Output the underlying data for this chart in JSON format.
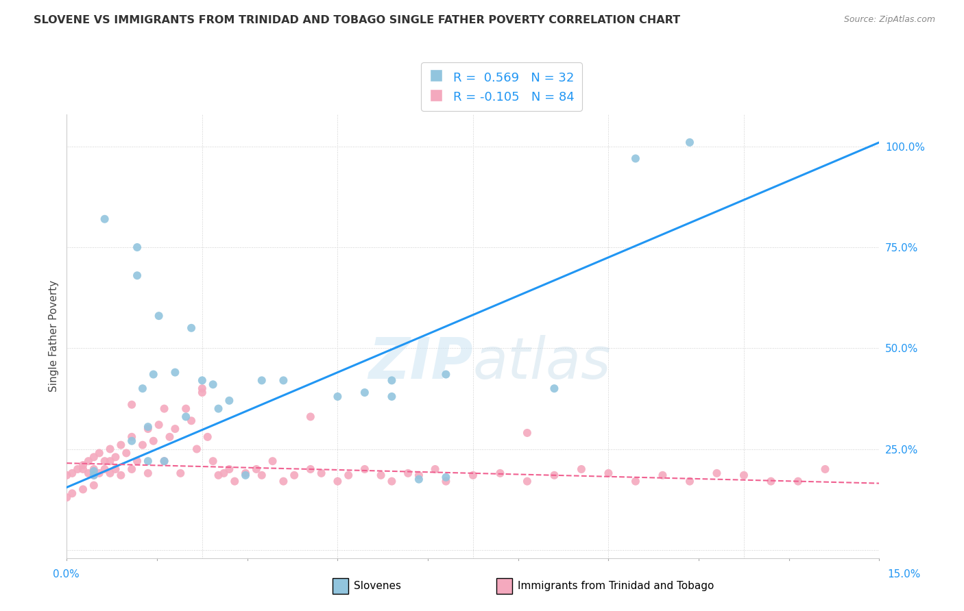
{
  "title": "SLOVENE VS IMMIGRANTS FROM TRINIDAD AND TOBAGO SINGLE FATHER POVERTY CORRELATION CHART",
  "source": "Source: ZipAtlas.com",
  "ylabel": "Single Father Poverty",
  "xlim": [
    0.0,
    0.15
  ],
  "ylim": [
    -0.02,
    1.08
  ],
  "blue_R": 0.569,
  "blue_N": 32,
  "pink_R": -0.105,
  "pink_N": 84,
  "blue_color": "#92c5de",
  "pink_color": "#f4a9be",
  "blue_line_color": "#2196F3",
  "pink_line_color": "#f06090",
  "legend_label_blue": "Slovenes",
  "legend_label_pink": "Immigrants from Trinidad and Tobago",
  "watermark_zip": "ZIP",
  "watermark_atlas": "atlas",
  "right_yticks": [
    0.0,
    0.25,
    0.5,
    0.75,
    1.0
  ],
  "right_yticklabels": [
    "",
    "25.0%",
    "50.0%",
    "75.0%",
    "100.0%"
  ],
  "blue_x": [
    0.005,
    0.005,
    0.007,
    0.012,
    0.013,
    0.013,
    0.014,
    0.015,
    0.015,
    0.016,
    0.017,
    0.018,
    0.02,
    0.022,
    0.023,
    0.025,
    0.027,
    0.028,
    0.03,
    0.033,
    0.036,
    0.04,
    0.05,
    0.055,
    0.06,
    0.065,
    0.07,
    0.09,
    0.105,
    0.115,
    0.06,
    0.07
  ],
  "blue_y": [
    0.185,
    0.195,
    0.82,
    0.27,
    0.75,
    0.68,
    0.4,
    0.22,
    0.305,
    0.435,
    0.58,
    0.22,
    0.44,
    0.33,
    0.55,
    0.42,
    0.41,
    0.35,
    0.37,
    0.185,
    0.42,
    0.42,
    0.38,
    0.39,
    0.38,
    0.175,
    0.435,
    0.4,
    0.97,
    1.01,
    0.42,
    0.18
  ],
  "pink_x": [
    0.0,
    0.001,
    0.002,
    0.003,
    0.003,
    0.004,
    0.004,
    0.005,
    0.005,
    0.005,
    0.006,
    0.006,
    0.007,
    0.007,
    0.008,
    0.008,
    0.009,
    0.009,
    0.01,
    0.01,
    0.011,
    0.012,
    0.012,
    0.013,
    0.014,
    0.015,
    0.015,
    0.016,
    0.017,
    0.018,
    0.019,
    0.02,
    0.021,
    0.022,
    0.023,
    0.024,
    0.025,
    0.026,
    0.027,
    0.028,
    0.029,
    0.03,
    0.031,
    0.033,
    0.035,
    0.036,
    0.038,
    0.04,
    0.042,
    0.045,
    0.047,
    0.05,
    0.052,
    0.055,
    0.058,
    0.06,
    0.063,
    0.065,
    0.068,
    0.07,
    0.075,
    0.08,
    0.085,
    0.09,
    0.095,
    0.1,
    0.105,
    0.11,
    0.115,
    0.12,
    0.125,
    0.13,
    0.135,
    0.14,
    0.085,
    0.045,
    0.025,
    0.018,
    0.012,
    0.008,
    0.005,
    0.003,
    0.001,
    0.0
  ],
  "pink_y": [
    0.185,
    0.19,
    0.2,
    0.2,
    0.21,
    0.22,
    0.19,
    0.23,
    0.2,
    0.185,
    0.24,
    0.19,
    0.2,
    0.22,
    0.25,
    0.19,
    0.23,
    0.2,
    0.26,
    0.185,
    0.24,
    0.28,
    0.2,
    0.22,
    0.26,
    0.3,
    0.19,
    0.27,
    0.31,
    0.22,
    0.28,
    0.3,
    0.19,
    0.35,
    0.32,
    0.25,
    0.39,
    0.28,
    0.22,
    0.185,
    0.19,
    0.2,
    0.17,
    0.19,
    0.2,
    0.185,
    0.22,
    0.17,
    0.185,
    0.2,
    0.19,
    0.17,
    0.185,
    0.2,
    0.185,
    0.17,
    0.19,
    0.185,
    0.2,
    0.17,
    0.185,
    0.19,
    0.17,
    0.185,
    0.2,
    0.19,
    0.17,
    0.185,
    0.17,
    0.19,
    0.185,
    0.17,
    0.17,
    0.2,
    0.29,
    0.33,
    0.4,
    0.35,
    0.36,
    0.22,
    0.16,
    0.15,
    0.14,
    0.13
  ],
  "blue_trend_x": [
    0.0,
    0.15
  ],
  "blue_trend_y": [
    0.155,
    1.01
  ],
  "pink_trend_x": [
    0.0,
    0.15
  ],
  "pink_trend_y": [
    0.215,
    0.165
  ]
}
